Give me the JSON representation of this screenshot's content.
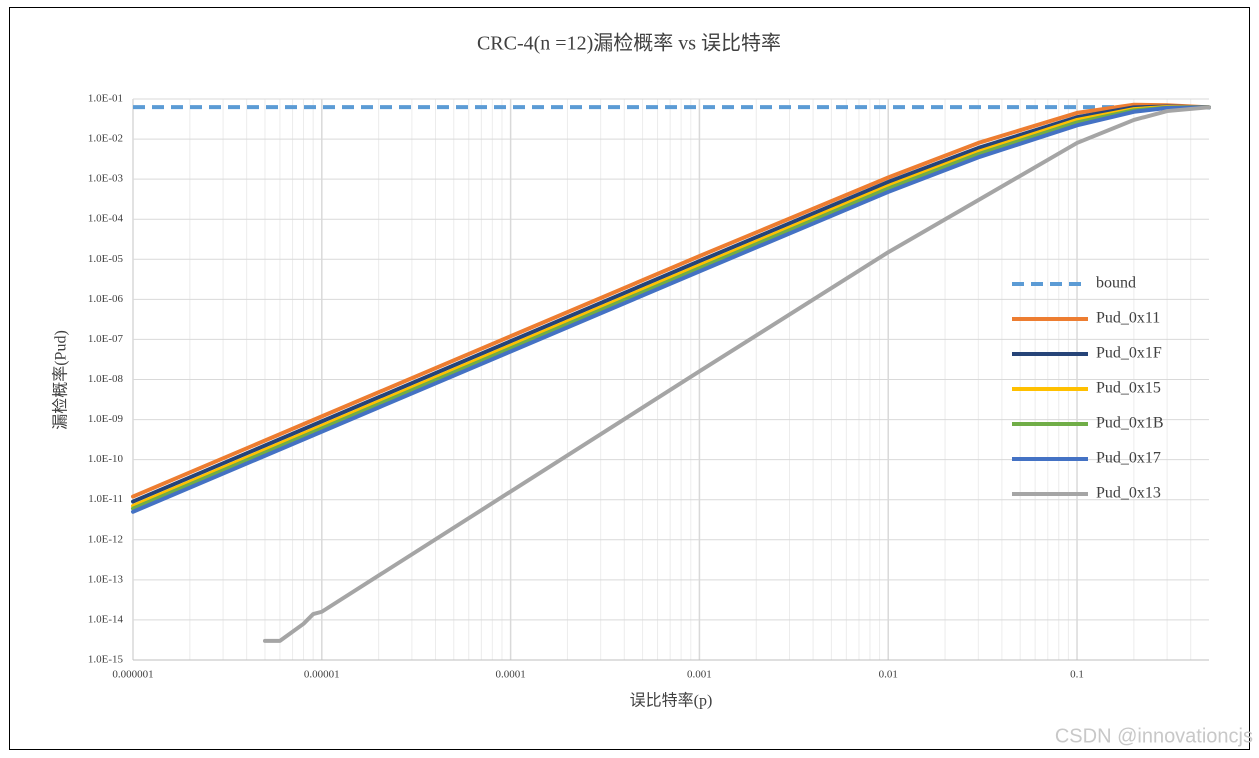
{
  "chart_data": {
    "type": "line",
    "title": "CRC-4(n =12)漏检概率 vs 误比特率",
    "x_label": "误比特率(p)",
    "y_label": "漏检概率(Pud)",
    "watermark": "CSDN @innovationcjs",
    "log_x": true,
    "log_y": true,
    "grid": true,
    "minor_grid": true,
    "legend": "right",
    "xlim": [
      1e-06,
      0.5
    ],
    "xticks": [
      1e-06,
      1e-05,
      0.0001,
      0.001,
      0.01,
      0.1
    ],
    "ylim": [
      1e-15,
      0.1
    ],
    "yticks": [
      {
        "value": 0.1,
        "label": "1.0E-01"
      },
      {
        "value": 0.01,
        "label": "1.0E-02"
      },
      {
        "value": 0.001,
        "label": "1.0E-03"
      },
      {
        "value": 0.0001,
        "label": "1.0E-04"
      },
      {
        "value": 1e-05,
        "label": "1.0E-05"
      },
      {
        "value": 1e-06,
        "label": "1.0E-06"
      },
      {
        "value": 1e-07,
        "label": "1.0E-07"
      },
      {
        "value": 1e-08,
        "label": "1.0E-08"
      },
      {
        "value": 1e-09,
        "label": "1.0E-09"
      },
      {
        "value": 1e-10,
        "label": "1.0E-10"
      },
      {
        "value": 1e-11,
        "label": "1.0E-11"
      },
      {
        "value": 1e-12,
        "label": "1.0E-12"
      },
      {
        "value": 1e-13,
        "label": "1.0E-13"
      },
      {
        "value": 1e-14,
        "label": "1.0E-14"
      },
      {
        "value": 1e-15,
        "label": "1.0E-15"
      }
    ],
    "series": [
      {
        "name": "bound",
        "color": "#5b9bd5",
        "dashed": true,
        "x": [
          1e-06,
          0.5
        ],
        "values": [
          0.0625,
          0.0625
        ]
      },
      {
        "name": "Pud_0x11",
        "color": "#ed7d31",
        "x": [
          1e-06,
          1e-05,
          0.0001,
          0.001,
          0.01,
          0.03,
          0.1,
          0.2,
          0.3,
          0.5
        ],
        "values": [
          1.2e-11,
          1.2e-09,
          1.2e-07,
          1.2e-05,
          0.0011,
          0.008,
          0.045,
          0.072,
          0.07,
          0.062
        ]
      },
      {
        "name": "Pud_0x1F",
        "color": "#264478",
        "x": [
          1e-06,
          1e-05,
          0.0001,
          0.001,
          0.01,
          0.03,
          0.1,
          0.2,
          0.3,
          0.5
        ],
        "values": [
          9e-12,
          9e-10,
          9e-08,
          9e-06,
          0.00085,
          0.006,
          0.035,
          0.062,
          0.065,
          0.062
        ]
      },
      {
        "name": "Pud_0x15",
        "color": "#ffc000",
        "x": [
          1e-06,
          1e-05,
          0.0001,
          0.001,
          0.01,
          0.03,
          0.1,
          0.2,
          0.3,
          0.5
        ],
        "values": [
          7e-12,
          7e-10,
          7e-08,
          7e-06,
          0.00067,
          0.0048,
          0.03,
          0.056,
          0.063,
          0.062
        ]
      },
      {
        "name": "Pud_0x1B",
        "color": "#70ad47",
        "x": [
          1e-06,
          1e-05,
          0.0001,
          0.001,
          0.01,
          0.03,
          0.1,
          0.2,
          0.3,
          0.5
        ],
        "values": [
          6e-12,
          6e-10,
          6e-08,
          6e-06,
          0.00058,
          0.0042,
          0.026,
          0.052,
          0.061,
          0.062
        ]
      },
      {
        "name": "Pud_0x17",
        "color": "#4472c4",
        "x": [
          1e-06,
          1e-05,
          0.0001,
          0.001,
          0.01,
          0.03,
          0.1,
          0.2,
          0.3,
          0.5
        ],
        "values": [
          5e-12,
          5e-10,
          5e-08,
          5e-06,
          0.00048,
          0.0035,
          0.022,
          0.048,
          0.06,
          0.062
        ]
      },
      {
        "name": "Pud_0x13",
        "color": "#a5a5a5",
        "x": [
          5e-06,
          6e-06,
          8e-06,
          9e-06,
          1e-05,
          0.0001,
          0.001,
          0.01,
          0.03,
          0.1,
          0.2,
          0.3,
          0.5
        ],
        "values": [
          3e-15,
          3e-15,
          8e-15,
          1.4e-14,
          1.6e-14,
          1.6e-11,
          1.6e-08,
          1.5e-05,
          0.0003,
          0.008,
          0.03,
          0.05,
          0.062
        ]
      }
    ]
  }
}
